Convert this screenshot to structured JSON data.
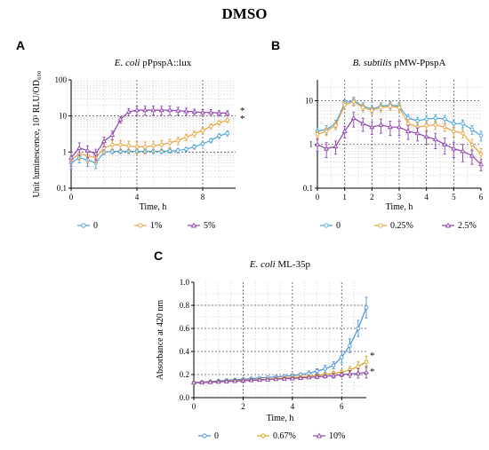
{
  "figure": {
    "title": "DMSO"
  },
  "chart_data": [
    {
      "panel": "A",
      "type": "line",
      "title_italic": "E. coli",
      "title_rest": " pPpspA::lux",
      "xlabel": "Time, h",
      "ylabel": "Unit luminescence, 10³ RLU/OD₆₀₀",
      "yscale": "log",
      "xlim": [
        0,
        10
      ],
      "ylim": [
        0.1,
        100
      ],
      "x_ticks": [
        "0",
        "4",
        "8"
      ],
      "x_tick_values": [
        0,
        4,
        8
      ],
      "y_ticks": [
        "0.1",
        "1",
        "10",
        "100"
      ],
      "y_tick_values": [
        0.1,
        1,
        10,
        100
      ],
      "major_x_grid": [
        4,
        8
      ],
      "major_y_grid": [
        1,
        10
      ],
      "annotations": [
        "*",
        "*"
      ],
      "legend": {
        "placement": "bottom"
      },
      "x": [
        0,
        0.5,
        1,
        1.5,
        2,
        2.5,
        3,
        3.5,
        4,
        4.5,
        5,
        5.5,
        6,
        6.5,
        7,
        7.5,
        8,
        8.5,
        9,
        9.5
      ],
      "series": [
        {
          "name": "0",
          "color": "#4aa5d9",
          "marker": "circle",
          "values": [
            0.5,
            0.7,
            0.6,
            0.5,
            1.0,
            1.05,
            1.05,
            1.05,
            1.05,
            1.05,
            1.05,
            1.05,
            1.08,
            1.1,
            1.2,
            1.4,
            1.7,
            2.1,
            2.8,
            3.3
          ],
          "err": [
            0.15,
            0.2,
            0.2,
            0.15,
            0.15,
            0.15,
            0.15,
            0.15,
            0.15,
            0.15,
            0.15,
            0.15,
            0.15,
            0.15,
            0.15,
            0.2,
            0.2,
            0.3,
            0.4,
            0.5
          ]
        },
        {
          "name": "1%",
          "color": "#e8a33d",
          "marker": "circle",
          "values": [
            0.6,
            0.9,
            0.8,
            0.7,
            1.3,
            1.6,
            1.6,
            1.5,
            1.4,
            1.4,
            1.5,
            1.6,
            1.8,
            2.1,
            2.6,
            3.2,
            4.0,
            5.2,
            6.5,
            7.6
          ],
          "err": [
            0.2,
            0.3,
            0.3,
            0.2,
            0.4,
            0.5,
            0.5,
            0.5,
            0.5,
            0.5,
            0.5,
            0.5,
            0.5,
            0.5,
            0.5,
            0.6,
            0.7,
            0.8,
            0.9,
            1.0
          ]
        },
        {
          "name": "5%",
          "color": "#8e44ad",
          "marker": "triangle",
          "values": [
            0.7,
            1.3,
            1.1,
            0.9,
            2.0,
            3.0,
            8.0,
            13.0,
            14.5,
            14.5,
            14.5,
            14.5,
            14.5,
            14.0,
            13.5,
            13.0,
            12.5,
            12.5,
            12.0,
            12.0
          ],
          "err": [
            0.3,
            0.5,
            0.4,
            0.3,
            0.6,
            0.8,
            1.5,
            3.0,
            4.0,
            4.0,
            4.0,
            4.0,
            4.0,
            3.5,
            3.0,
            2.5,
            2.5,
            2.5,
            2.0,
            2.0
          ]
        }
      ]
    },
    {
      "panel": "B",
      "type": "line",
      "title_italic": "B. subtilis",
      "title_rest": " pMW-PpspA",
      "xlabel": "Time, h",
      "ylabel": "",
      "yscale": "log",
      "xlim": [
        0,
        6
      ],
      "ylim": [
        0.1,
        30
      ],
      "x_ticks": [
        "0",
        "1",
        "2",
        "3",
        "4",
        "5",
        "6"
      ],
      "x_tick_values": [
        0,
        1,
        2,
        3,
        4,
        5,
        6
      ],
      "y_ticks": [
        "0.1",
        "1",
        "10"
      ],
      "y_tick_values": [
        0.1,
        1,
        10
      ],
      "major_x_grid": [
        1,
        2,
        3,
        4,
        5
      ],
      "major_y_grid": [
        1,
        10
      ],
      "legend": {
        "placement": "bottom"
      },
      "x": [
        0,
        0.33,
        0.67,
        1,
        1.33,
        1.67,
        2,
        2.33,
        2.67,
        3,
        3.33,
        3.67,
        4,
        4.33,
        4.67,
        5,
        5.33,
        5.67,
        6
      ],
      "series": [
        {
          "name": "0",
          "color": "#4aa5d9",
          "marker": "circle",
          "values": [
            2.0,
            2.2,
            3.0,
            9.0,
            10.0,
            7.5,
            6.5,
            7.5,
            8.0,
            7.5,
            4.0,
            3.5,
            3.8,
            4.0,
            3.8,
            3.0,
            3.0,
            2.2,
            1.6
          ],
          "err": [
            0.4,
            0.5,
            0.6,
            1.5,
            2.0,
            1.5,
            1.2,
            1.5,
            1.5,
            1.5,
            0.8,
            0.7,
            0.8,
            0.8,
            0.8,
            0.6,
            0.6,
            0.5,
            0.4
          ]
        },
        {
          "name": "0.25%",
          "color": "#e8a33d",
          "marker": "circle",
          "values": [
            1.7,
            2.0,
            2.7,
            8.0,
            9.5,
            7.0,
            6.0,
            7.0,
            7.5,
            7.0,
            3.0,
            2.5,
            2.7,
            2.8,
            2.5,
            2.0,
            1.8,
            1.0,
            0.6
          ],
          "err": [
            0.3,
            0.4,
            0.5,
            1.5,
            2.0,
            1.5,
            1.2,
            1.5,
            1.5,
            1.5,
            0.7,
            0.6,
            0.6,
            0.6,
            0.5,
            0.5,
            0.4,
            0.3,
            0.2
          ]
        },
        {
          "name": "2.5%",
          "color": "#8e44ad",
          "marker": "triangle",
          "values": [
            1.0,
            0.8,
            0.9,
            2.0,
            4.0,
            3.0,
            2.5,
            2.8,
            2.5,
            2.5,
            2.0,
            1.8,
            1.5,
            1.3,
            1.0,
            0.8,
            0.7,
            0.55,
            0.35
          ],
          "err": [
            0.3,
            0.3,
            0.3,
            0.6,
            1.5,
            1.0,
            0.8,
            1.0,
            0.9,
            0.9,
            0.7,
            0.6,
            0.5,
            0.5,
            0.4,
            0.3,
            0.3,
            0.2,
            0.1
          ]
        }
      ]
    },
    {
      "panel": "C",
      "type": "line",
      "title_italic": "E. coli",
      "title_rest": " ML-35p",
      "xlabel": "Time, h",
      "ylabel": "Absorbance at 420 nm",
      "yscale": "linear",
      "xlim": [
        0,
        7
      ],
      "ylim": [
        0,
        1.0
      ],
      "x_ticks": [
        "0",
        "2",
        "4",
        "6"
      ],
      "x_tick_values": [
        0,
        2,
        4,
        6
      ],
      "y_ticks": [
        "0.0",
        "0.2",
        "0.4",
        "0.6",
        "0.8",
        "1.0"
      ],
      "y_tick_values": [
        0,
        0.2,
        0.4,
        0.6,
        0.8,
        1.0
      ],
      "major_x_grid": [
        2,
        4,
        6
      ],
      "major_y_grid": [
        0.2,
        0.4,
        0.6,
        0.8
      ],
      "annotations": [
        "*",
        "*"
      ],
      "legend": {
        "placement": "bottom"
      },
      "x": [
        0,
        0.33,
        0.67,
        1,
        1.33,
        1.67,
        2,
        2.33,
        2.67,
        3,
        3.33,
        3.67,
        4,
        4.33,
        4.67,
        5,
        5.33,
        5.67,
        6,
        6.33,
        6.67,
        7
      ],
      "series": [
        {
          "name": "0",
          "color": "#4a90d9",
          "marker": "circle",
          "values": [
            0.13,
            0.135,
            0.14,
            0.145,
            0.15,
            0.155,
            0.16,
            0.165,
            0.17,
            0.175,
            0.18,
            0.185,
            0.19,
            0.2,
            0.21,
            0.23,
            0.25,
            0.28,
            0.35,
            0.45,
            0.6,
            0.78
          ],
          "err": [
            0.01,
            0.01,
            0.01,
            0.01,
            0.01,
            0.01,
            0.01,
            0.01,
            0.01,
            0.01,
            0.01,
            0.01,
            0.015,
            0.015,
            0.02,
            0.02,
            0.03,
            0.03,
            0.05,
            0.06,
            0.07,
            0.09
          ]
        },
        {
          "name": "0.67%",
          "color": "#d4a017",
          "marker": "circle",
          "values": [
            0.13,
            0.133,
            0.136,
            0.14,
            0.143,
            0.147,
            0.15,
            0.153,
            0.157,
            0.16,
            0.165,
            0.17,
            0.175,
            0.18,
            0.185,
            0.19,
            0.2,
            0.21,
            0.22,
            0.24,
            0.27,
            0.31
          ],
          "err": [
            0.01,
            0.01,
            0.01,
            0.01,
            0.01,
            0.01,
            0.01,
            0.01,
            0.01,
            0.01,
            0.01,
            0.01,
            0.01,
            0.01,
            0.01,
            0.015,
            0.015,
            0.02,
            0.02,
            0.03,
            0.04,
            0.05
          ]
        },
        {
          "name": "10%",
          "color": "#8e44ad",
          "marker": "triangle",
          "values": [
            0.13,
            0.13,
            0.133,
            0.136,
            0.14,
            0.143,
            0.146,
            0.15,
            0.153,
            0.156,
            0.16,
            0.163,
            0.166,
            0.17,
            0.175,
            0.18,
            0.185,
            0.19,
            0.2,
            0.205,
            0.21,
            0.22
          ],
          "err": [
            0.01,
            0.01,
            0.01,
            0.01,
            0.01,
            0.01,
            0.01,
            0.01,
            0.01,
            0.01,
            0.01,
            0.01,
            0.01,
            0.01,
            0.01,
            0.015,
            0.015,
            0.02,
            0.02,
            0.03,
            0.04,
            0.05
          ]
        }
      ]
    }
  ]
}
